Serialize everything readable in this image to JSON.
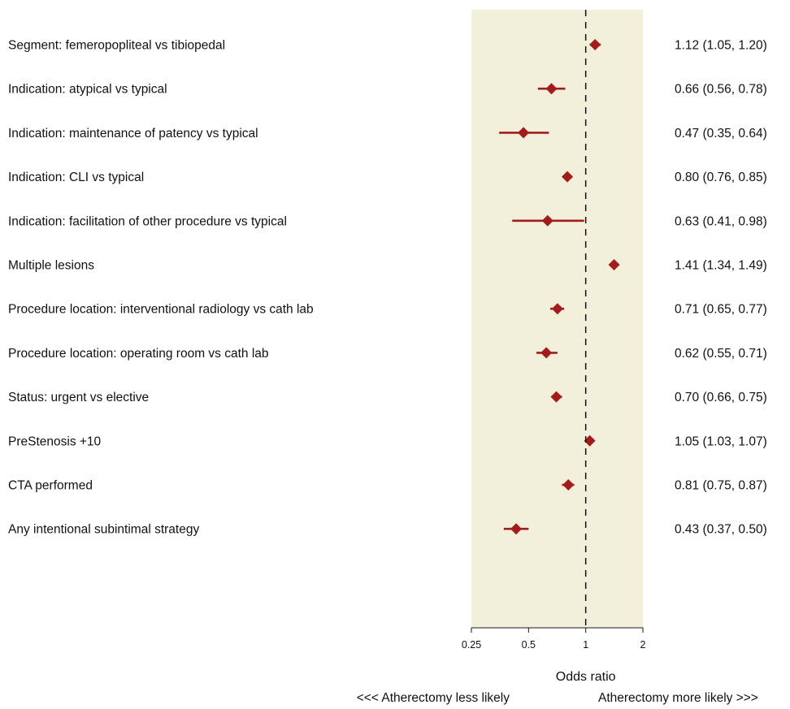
{
  "chart_data": {
    "type": "forest",
    "xscale": "log",
    "xlim": [
      0.25,
      2
    ],
    "reference_line": 1,
    "xticks": [
      {
        "value": 0.25,
        "label": "0.25"
      },
      {
        "value": 0.5,
        "label": "0.5"
      },
      {
        "value": 1,
        "label": "1"
      },
      {
        "value": 2,
        "label": "2"
      }
    ],
    "xlabel": "Odds ratio",
    "direction_left": "<<< Atherectomy less likely",
    "direction_right": "Atherectomy more likely >>>",
    "rows": [
      {
        "label": "Segment: femeropopliteal vs tibiopedal",
        "or": 1.12,
        "lo": 1.05,
        "hi": 1.2,
        "text": "1.12 (1.05, 1.20)"
      },
      {
        "label": "Indication: atypical vs typical",
        "or": 0.66,
        "lo": 0.56,
        "hi": 0.78,
        "text": "0.66 (0.56, 0.78)"
      },
      {
        "label": "Indication: maintenance of patency vs typical",
        "or": 0.47,
        "lo": 0.35,
        "hi": 0.64,
        "text": "0.47 (0.35, 0.64)"
      },
      {
        "label": "Indication: CLI vs typical",
        "or": 0.8,
        "lo": 0.76,
        "hi": 0.85,
        "text": "0.80 (0.76, 0.85)"
      },
      {
        "label": "Indication: facilitation of other procedure vs typical",
        "or": 0.63,
        "lo": 0.41,
        "hi": 0.98,
        "text": "0.63 (0.41, 0.98)"
      },
      {
        "label": "Multiple lesions",
        "or": 1.41,
        "lo": 1.34,
        "hi": 1.49,
        "text": "1.41 (1.34, 1.49)"
      },
      {
        "label": "Procedure location: interventional radiology vs cath lab",
        "or": 0.71,
        "lo": 0.65,
        "hi": 0.77,
        "text": "0.71 (0.65, 0.77)"
      },
      {
        "label": "Procedure location: operating room vs cath lab",
        "or": 0.62,
        "lo": 0.55,
        "hi": 0.71,
        "text": "0.62 (0.55, 0.71)"
      },
      {
        "label": "Status: urgent vs elective",
        "or": 0.7,
        "lo": 0.66,
        "hi": 0.75,
        "text": "0.70 (0.66, 0.75)"
      },
      {
        "label": "PreStenosis +10",
        "or": 1.05,
        "lo": 1.03,
        "hi": 1.07,
        "text": "1.05 (1.03, 1.07)"
      },
      {
        "label": "CTA performed",
        "or": 0.81,
        "lo": 0.75,
        "hi": 0.87,
        "text": "0.81 (0.75, 0.87)"
      },
      {
        "label": "Any intentional subintimal strategy",
        "or": 0.43,
        "lo": 0.37,
        "hi": 0.5,
        "text": "0.43 (0.37, 0.50)"
      }
    ],
    "colors": {
      "panel": "#f2efda",
      "marker": "#a31c1c",
      "reference": "#111111",
      "axis": "#111111"
    },
    "legend": "none",
    "grid": false
  }
}
